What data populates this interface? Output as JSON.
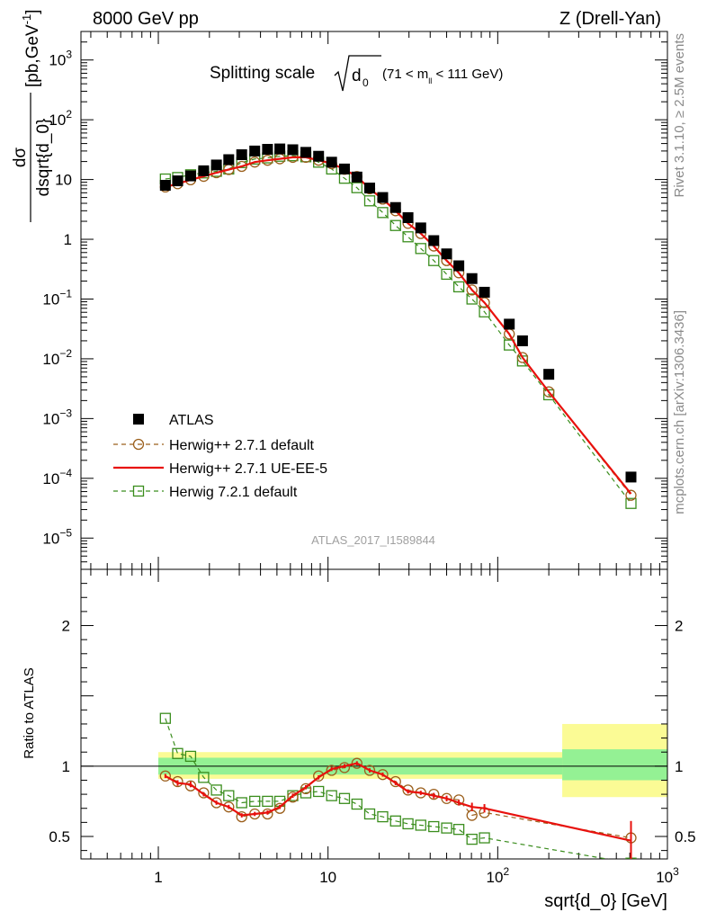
{
  "header": {
    "left": "8000 GeV pp",
    "right": "Z (Drell-Yan)"
  },
  "side_labels": {
    "rivet": "Rivet 3.1.10, ≥ 2.5M events",
    "mcplots": "mcplots.cern.ch [arXiv:1306.3436]"
  },
  "plot_title": {
    "main": "Splitting scale",
    "root_symbol": "d",
    "root_sub": "0",
    "range": "(71 < m",
    "range_sub": "ll",
    "range_end": " < 111 GeV)"
  },
  "analysis_id": "ATLAS_2017_I1589844",
  "chart_data": {
    "type": "scatter",
    "x_scale": "log",
    "xlim": [
      0.35,
      1000
    ],
    "xlabel": "sqrt{d_0} [GeV]",
    "x_ticks": [
      {
        "value": 1,
        "label": "1"
      },
      {
        "value": 10,
        "label": "10"
      },
      {
        "value": 100,
        "label": "10",
        "sup": "2"
      },
      {
        "value": 1000,
        "label": "10",
        "sup": "3"
      }
    ],
    "main_panel": {
      "y_scale": "log",
      "ylim": [
        3e-06,
        3000
      ],
      "ylabel": {
        "num": "dσ",
        "den": "dsqrt{d_0}",
        "unit": "[pb,GeV",
        "unit_sup": "-1",
        "unit_end": "]"
      },
      "y_ticks": [
        {
          "value": 1000,
          "label": "10",
          "sup": "3"
        },
        {
          "value": 100,
          "label": "10",
          "sup": "2"
        },
        {
          "value": 10,
          "label": "10",
          "sup": ""
        },
        {
          "value": 1,
          "label": "1",
          "sup": ""
        },
        {
          "value": 0.1,
          "label": "10",
          "sup": "−1"
        },
        {
          "value": 0.01,
          "label": "10",
          "sup": "−2"
        },
        {
          "value": 0.001,
          "label": "10",
          "sup": "−3"
        },
        {
          "value": 0.0001,
          "label": "10",
          "sup": "−4"
        },
        {
          "value": 1e-05,
          "label": "10",
          "sup": "−5"
        }
      ]
    },
    "ratio_panel": {
      "ylim": [
        0.34,
        2.4
      ],
      "ylabel": "Ratio to ATLAS",
      "y_ticks": [
        {
          "value": 0.5,
          "label": "0.5"
        },
        {
          "value": 1,
          "label": "1"
        },
        {
          "value": 2,
          "label": "2"
        }
      ],
      "band_inner": [
        {
          "x": [
            1.0,
            240
          ],
          "lo": 0.94,
          "hi": 1.06
        },
        {
          "x": [
            240,
            1000
          ],
          "lo": 0.9,
          "hi": 1.12
        }
      ],
      "band_outer": [
        {
          "x": [
            1.0,
            240
          ],
          "lo": 0.91,
          "hi": 1.1
        },
        {
          "x": [
            240,
            1000
          ],
          "lo": 0.78,
          "hi": 1.3
        }
      ]
    },
    "x": [
      1.1,
      1.3,
      1.55,
      1.85,
      2.2,
      2.6,
      3.1,
      3.7,
      4.4,
      5.2,
      6.2,
      7.4,
      8.8,
      10.5,
      12.5,
      14.8,
      17.6,
      21,
      25,
      29.6,
      35.2,
      42,
      50,
      59,
      70.5,
      83.5,
      117,
      140,
      200,
      610
    ],
    "series": [
      {
        "name": "ATLAS",
        "style": "data",
        "color": "#000000",
        "values": [
          8.0,
          9.5,
          11.5,
          14.0,
          17.5,
          21.5,
          26.0,
          30.0,
          32.0,
          32.5,
          31.5,
          28.5,
          24.5,
          19.5,
          15.0,
          11.0,
          7.2,
          5.0,
          3.4,
          2.3,
          1.55,
          0.95,
          0.57,
          0.36,
          0.22,
          0.13,
          0.038,
          0.02,
          0.0055,
          0.000105
        ]
      },
      {
        "name": "Herwig++ 2.7.1 default",
        "style": "dashed-circle",
        "color": "#9b5f1c",
        "values": [
          7.5,
          8.5,
          9.9,
          11.3,
          13.0,
          14.7,
          16.6,
          19.6,
          21.0,
          22.2,
          23.5,
          23.5,
          21.0,
          18.5,
          14.8,
          11.2,
          7.0,
          4.7,
          3.0,
          1.85,
          1.25,
          0.77,
          0.44,
          0.275,
          0.142,
          0.087,
          0.026,
          0.0105,
          0.0028,
          5.2e-05
        ],
        "ratio": [
          0.93,
          0.89,
          0.86,
          0.81,
          0.74,
          0.71,
          0.64,
          0.66,
          0.66,
          0.7,
          0.78,
          0.84,
          0.93,
          0.97,
          0.99,
          1.02,
          0.97,
          0.94,
          0.89,
          0.83,
          0.81,
          0.8,
          0.77,
          0.76,
          0.65,
          0.67,
          null,
          null,
          null,
          0.49
        ]
      },
      {
        "name": "Herwig++ 2.7.1 UE-EE-5",
        "style": "solid",
        "color": "#e8110d",
        "values": [
          7.5,
          8.5,
          9.9,
          11.3,
          13.0,
          14.7,
          16.6,
          19.6,
          21.0,
          22.2,
          23.5,
          23.5,
          21.0,
          18.5,
          14.8,
          11.2,
          7.0,
          4.7,
          3.0,
          1.85,
          1.25,
          0.77,
          0.44,
          0.275,
          0.142,
          0.087,
          0.026,
          0.0105,
          0.0028,
          5.5e-05
        ],
        "ratio": [
          0.93,
          0.88,
          0.87,
          0.8,
          0.74,
          0.71,
          0.65,
          0.66,
          0.67,
          0.71,
          0.79,
          0.85,
          0.92,
          0.98,
          1.0,
          1.02,
          0.97,
          0.94,
          0.88,
          0.82,
          0.81,
          0.79,
          0.77,
          0.74,
          0.71,
          0.7,
          null,
          null,
          null,
          0.47
        ],
        "ratio_errors": [
          0.015,
          0.02,
          0.02,
          0.015,
          0.015,
          0.015,
          0.015,
          0.015,
          0.015,
          0.015,
          0.015,
          0.015,
          0.015,
          0.015,
          0.015,
          0.015,
          0.015,
          0.015,
          0.015,
          0.015,
          0.015,
          0.02,
          0.02,
          0.02,
          0.03,
          0.03,
          0,
          0,
          0,
          0.14
        ]
      },
      {
        "name": "Herwig 7.2.1 default",
        "style": "dashed-square",
        "color": "#3a8d1d",
        "values": [
          10.2,
          10.8,
          12.0,
          12.9,
          13.7,
          15.0,
          19.2,
          22.0,
          23.0,
          24.5,
          25.0,
          24.0,
          19.5,
          15.0,
          10.5,
          7.3,
          4.4,
          2.8,
          1.7,
          1.1,
          0.7,
          0.44,
          0.26,
          0.16,
          0.1,
          0.061,
          0.017,
          0.0092,
          0.0025,
          3.8e-05
        ],
        "ratio": [
          1.34,
          1.09,
          1.07,
          0.92,
          0.83,
          0.79,
          0.74,
          0.75,
          0.75,
          0.75,
          0.79,
          0.81,
          0.82,
          0.79,
          0.77,
          0.73,
          0.66,
          0.64,
          0.61,
          0.59,
          0.58,
          0.57,
          0.56,
          0.55,
          0.48,
          0.49,
          null,
          null,
          null,
          0.31
        ]
      }
    ]
  },
  "legend": {
    "position": "lower-left",
    "entries": [
      "ATLAS",
      "Herwig++ 2.7.1 default",
      "Herwig++ 2.7.1 UE-EE-5",
      "Herwig 7.2.1 default"
    ]
  }
}
